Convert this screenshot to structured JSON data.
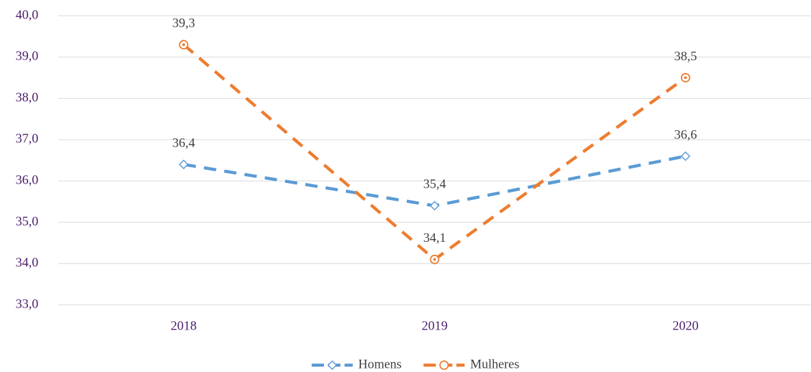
{
  "chart_data": {
    "type": "line",
    "categories": [
      "2018",
      "2019",
      "2020"
    ],
    "series": [
      {
        "name": "Homens",
        "color": "#5b9bd5",
        "marker": "diamond",
        "values": [
          36.4,
          35.4,
          36.6
        ],
        "value_labels": [
          "36,4",
          "35,4",
          "36,6"
        ]
      },
      {
        "name": "Mulheres",
        "color": "#ed7d31",
        "marker": "circle",
        "values": [
          39.3,
          34.1,
          38.5
        ],
        "value_labels": [
          "39,3",
          "34,1",
          "38,5"
        ]
      }
    ],
    "ylim": [
      33,
      40
    ],
    "yticks": [
      {
        "value": 33,
        "label": "33,0"
      },
      {
        "value": 34,
        "label": "34,0"
      },
      {
        "value": 35,
        "label": "35,0"
      },
      {
        "value": 36,
        "label": "36,0"
      },
      {
        "value": 37,
        "label": "37,0"
      },
      {
        "value": 38,
        "label": "38,0"
      },
      {
        "value": 39,
        "label": "39,0"
      },
      {
        "value": 40,
        "label": "40,0"
      }
    ],
    "grid": true,
    "legend": "bottom"
  }
}
